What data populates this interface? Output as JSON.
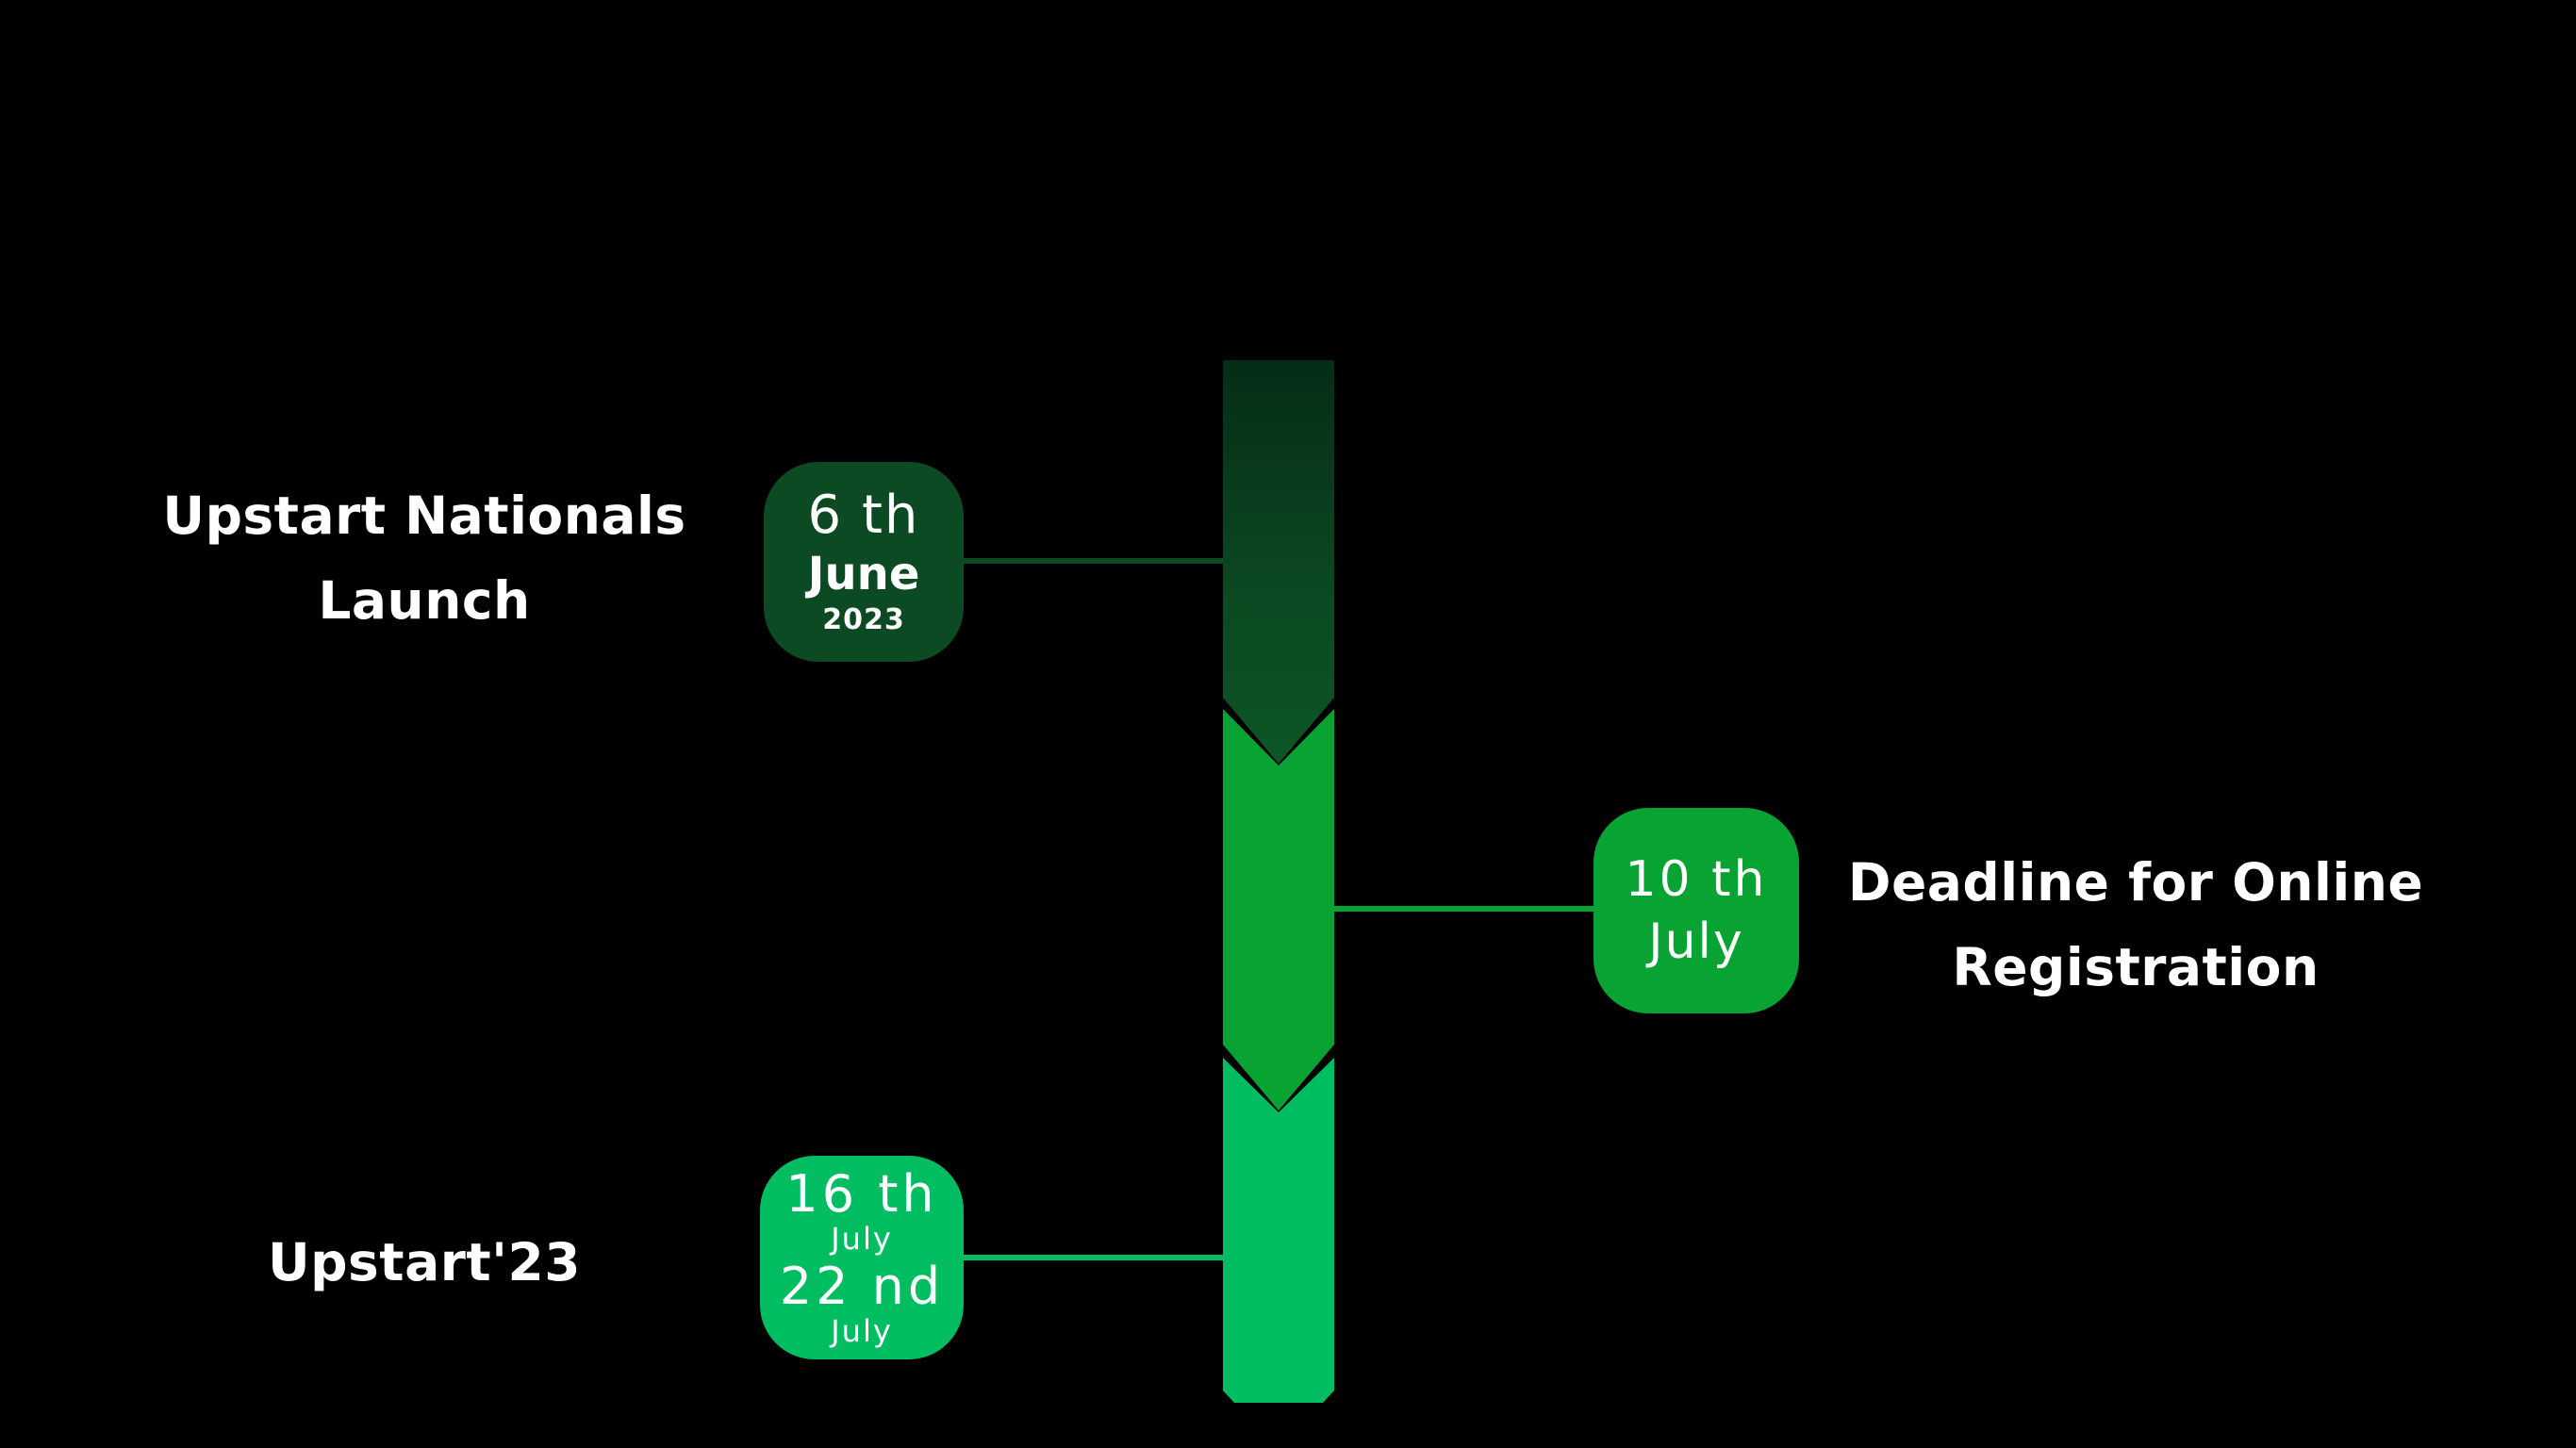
{
  "colors": {
    "background": "#000000",
    "stage1": "#0b4a22",
    "stage1_top": "#06331a",
    "stage2": "#08a333",
    "stage3": "#00bd62",
    "text": "#ffffff"
  },
  "events": [
    {
      "label_line1": "Upstart Nationals",
      "label_line2": "Launch",
      "date_day": "6 th",
      "date_month": "June",
      "date_year": "2023"
    },
    {
      "label_line1": "Deadline for Online",
      "label_line2": "Registration",
      "date_day": "10 th",
      "date_month": "July"
    },
    {
      "label_line1": "Upstart'23",
      "date_start_day": "16 th",
      "date_start_month": "July",
      "date_end_day": "22 nd",
      "date_end_month": "July"
    }
  ]
}
